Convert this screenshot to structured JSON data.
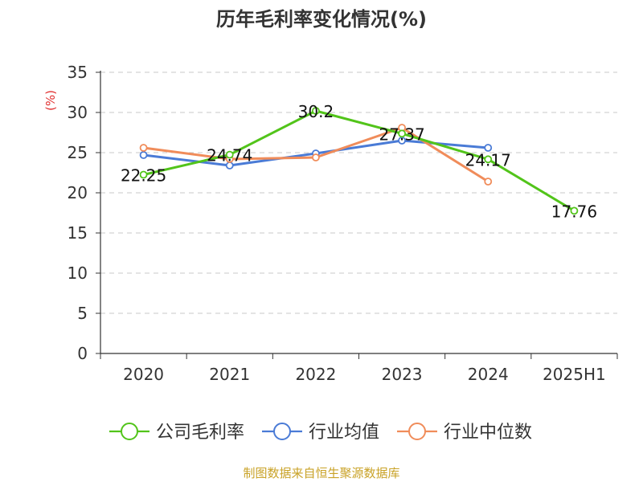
{
  "page": {
    "title": "历年毛利率变化情况(%)",
    "source": "制图数据来自恒生聚源数据库"
  },
  "chart_data": {
    "type": "line",
    "title": "历年毛利率变化情况(%)",
    "ylabel": "(%)",
    "xlabel": "",
    "ylim": [
      0,
      35
    ],
    "yticks": [
      0,
      5,
      10,
      15,
      20,
      25,
      30,
      35
    ],
    "categories": [
      "2020",
      "2021",
      "2022",
      "2023",
      "2024",
      "2025H1"
    ],
    "grid": true,
    "legend_position": "bottom",
    "series": [
      {
        "name": "公司毛利率",
        "color": "#52c41a",
        "values": [
          22.25,
          24.74,
          30.2,
          27.37,
          24.17,
          17.76
        ],
        "labels": [
          "22.25",
          "24.74",
          "30.2",
          "27.37",
          "24.17",
          "17.76"
        ]
      },
      {
        "name": "行业均值",
        "color": "#4a7bd6",
        "values": [
          24.7,
          23.4,
          24.9,
          26.5,
          25.6,
          null
        ]
      },
      {
        "name": "行业中位数",
        "color": "#f08c5a",
        "values": [
          25.6,
          24.2,
          24.4,
          28.1,
          21.4,
          null
        ]
      }
    ],
    "colors": {
      "axis": "#333333",
      "grid": "#c8c8c8",
      "ylabel": "#e03030"
    }
  }
}
